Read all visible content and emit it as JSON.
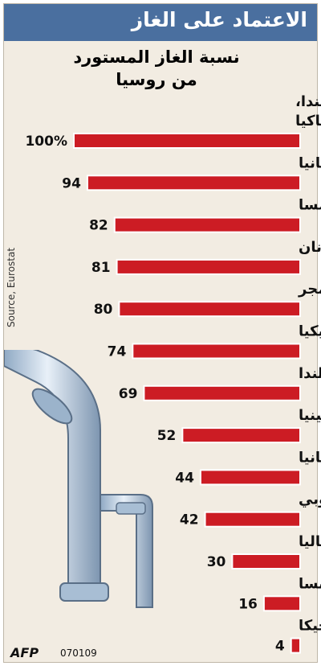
{
  "header": {
    "title": "الاعتماد على الغاز",
    "subtitle_line1": "نسبة الغاز المستورد",
    "subtitle_line2": "من روسيا"
  },
  "source": "Source, Eurostat",
  "credit": {
    "agency": "AFP",
    "code": "070109"
  },
  "colors": {
    "bar": "#cc1c24",
    "title_bg": "#4a6f9f",
    "panel_bg": "#f2ece2"
  },
  "chart_data": {
    "type": "bar",
    "orientation": "horizontal",
    "title": "الاعتماد على الغاز",
    "subtitle": "نسبة الغاز المستورد من روسيا",
    "xlim": [
      0,
      100
    ],
    "categories": [
      "بلغاريا، استونيا، فنلندا، لاتفيا، ليتوانيا، سلوفاكيا",
      "رومانيا",
      "النمسا",
      "اليونان",
      "المجر",
      "تشيكيا",
      "بولندا",
      "سلوفينيا",
      "المانيا",
      "الاتحاد الاوروبي",
      "ايطاليا",
      "فرنسا",
      "بلجيكا"
    ],
    "values": [
      100,
      94,
      82,
      81,
      80,
      74,
      69,
      52,
      44,
      42,
      30,
      16,
      4
    ],
    "value_labels": [
      "100%",
      "94",
      "82",
      "81",
      "80",
      "74",
      "69",
      "52",
      "44",
      "42",
      "30",
      "16",
      "4"
    ]
  }
}
